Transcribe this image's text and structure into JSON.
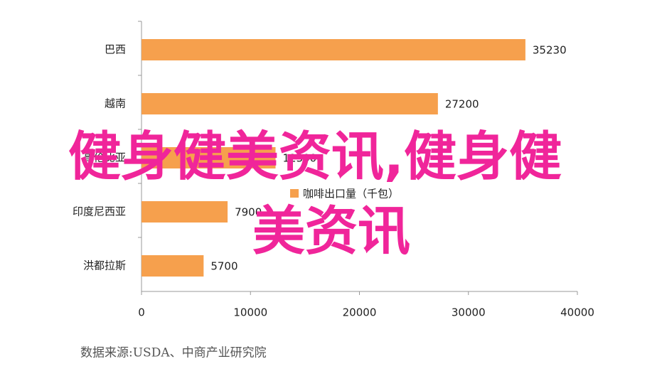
{
  "chart_data": {
    "type": "bar",
    "orientation": "horizontal",
    "categories": [
      "巴西",
      "越南",
      "哥伦比亚",
      "印度尼西亚",
      "洪都拉斯"
    ],
    "values": [
      35230,
      27200,
      12300,
      7900,
      5700
    ],
    "color": "#f6a04d",
    "series_name": "咖啡出口量（千包）",
    "xlim": [
      0,
      40000
    ],
    "xticks": [
      0,
      10000,
      20000,
      30000,
      40000
    ],
    "source": "数据来源:USDA、中商产业研究院",
    "watermark": [
      "健身健美资讯,健身健",
      "美资讯"
    ]
  }
}
